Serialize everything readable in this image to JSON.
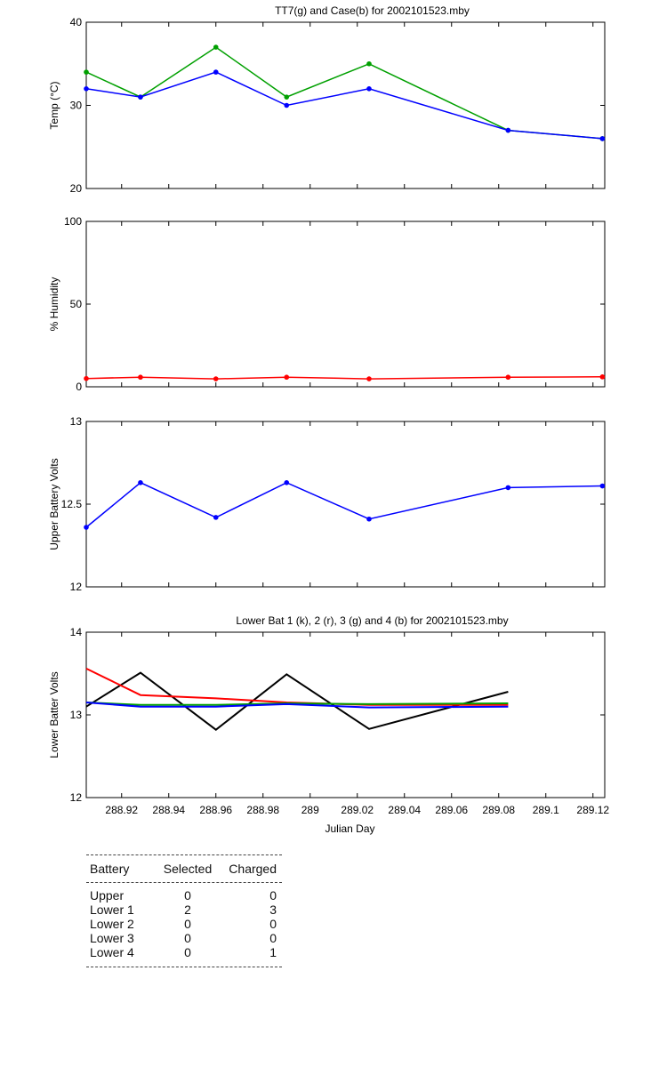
{
  "chart_data": [
    {
      "type": "line",
      "title": "TT7(g) and Case(b) for 2002101523.mby",
      "xlabel": "",
      "ylabel": "Temp  (°C)",
      "xlim": [
        288.905,
        289.125
      ],
      "ylim": [
        20,
        40
      ],
      "yticks": [
        "20",
        "30",
        "40"
      ],
      "x": [
        288.905,
        288.928,
        288.96,
        288.99,
        289.025,
        289.084,
        289.124
      ],
      "series": [
        {
          "color": "#00a000",
          "values": [
            34,
            31,
            37,
            31,
            35,
            27,
            26
          ]
        },
        {
          "color": "#0000ff",
          "values": [
            32,
            31,
            34,
            30,
            32,
            27,
            26
          ]
        }
      ]
    },
    {
      "type": "line",
      "title": "",
      "xlabel": "",
      "ylabel": "% Humidity",
      "xlim": [
        288.905,
        289.125
      ],
      "ylim": [
        0,
        100
      ],
      "yticks": [
        "0",
        "50",
        "100"
      ],
      "x": [
        288.905,
        288.928,
        288.96,
        288.99,
        289.025,
        289.084,
        289.124
      ],
      "series": [
        {
          "color": "#ff0000",
          "values": [
            5,
            5.8,
            4.8,
            5.8,
            4.8,
            5.8,
            6
          ]
        }
      ]
    },
    {
      "type": "line",
      "title": "",
      "xlabel": "",
      "ylabel": "Upper Battery Volts",
      "xlim": [
        288.905,
        289.125
      ],
      "ylim": [
        12,
        13
      ],
      "yticks": [
        "12",
        "12.5",
        "13"
      ],
      "x": [
        288.905,
        288.928,
        288.96,
        288.99,
        289.025,
        289.084,
        289.124
      ],
      "series": [
        {
          "color": "#0000ff",
          "values": [
            12.36,
            12.63,
            12.42,
            12.63,
            12.41,
            12.6,
            12.61
          ]
        }
      ]
    },
    {
      "type": "line",
      "title": "Lower Bat 1 (k), 2 (r), 3 (g) and 4 (b) for 2002101523.mby",
      "xlabel": "Julian Day",
      "ylabel": "Lower Batter Volts",
      "xlim": [
        288.905,
        289.125
      ],
      "ylim": [
        12,
        14
      ],
      "yticks": [
        "12",
        "13",
        "14"
      ],
      "xticks": [
        {
          "v": 288.92,
          "label": "288.92"
        },
        {
          "v": 288.94,
          "label": "288.94"
        },
        {
          "v": 288.96,
          "label": "288.96"
        },
        {
          "v": 288.98,
          "label": "288.98"
        },
        {
          "v": 289.0,
          "label": "289"
        },
        {
          "v": 289.02,
          "label": "289.02"
        },
        {
          "v": 289.04,
          "label": "289.04"
        },
        {
          "v": 289.06,
          "label": "289.06"
        },
        {
          "v": 289.08,
          "label": "289.08"
        },
        {
          "v": 289.1,
          "label": "289.1"
        },
        {
          "v": 289.12,
          "label": "289.12"
        }
      ],
      "x": [
        288.905,
        288.928,
        288.96,
        288.99,
        289.025,
        289.084
      ],
      "series": [
        {
          "color": "#000000",
          "values": [
            13.1,
            13.51,
            12.82,
            13.49,
            12.83,
            13.28
          ]
        },
        {
          "color": "#ff0000",
          "values": [
            13.56,
            13.24,
            13.2,
            13.15,
            13.12,
            13.12
          ]
        },
        {
          "color": "#00a000",
          "values": [
            13.15,
            13.12,
            13.12,
            13.14,
            13.13,
            13.14
          ]
        },
        {
          "color": "#0000ff",
          "values": [
            13.15,
            13.1,
            13.1,
            13.13,
            13.09,
            13.1
          ]
        }
      ]
    }
  ],
  "legend_table": {
    "headers": {
      "battery": "Battery",
      "selected": "Selected",
      "charged": "Charged"
    },
    "rows": [
      {
        "battery": "Upper",
        "selected": "0",
        "charged": "0"
      },
      {
        "battery": "Lower 1",
        "selected": "2",
        "charged": "3"
      },
      {
        "battery": "Lower 2",
        "selected": "0",
        "charged": "0"
      },
      {
        "battery": "Lower 3",
        "selected": "0",
        "charged": "0"
      },
      {
        "battery": "Lower 4",
        "selected": "0",
        "charged": "1"
      }
    ]
  }
}
